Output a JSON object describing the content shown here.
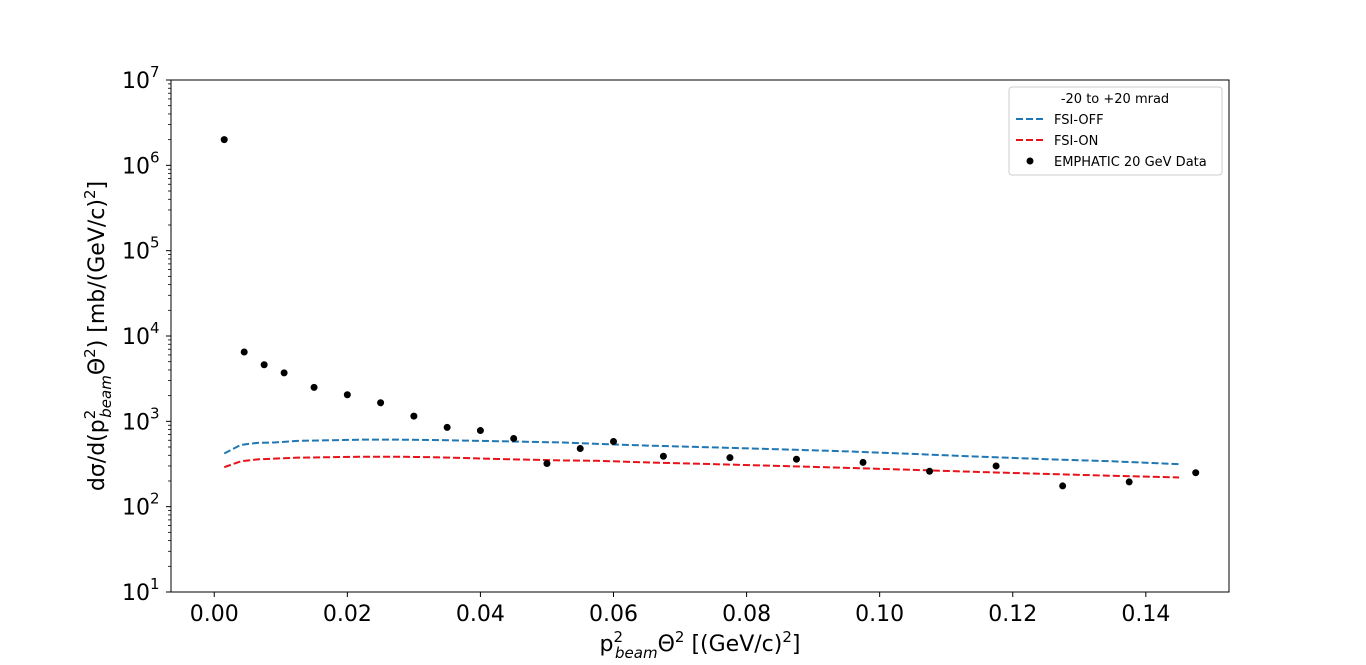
{
  "chart_data": {
    "type": "scatter",
    "title": "",
    "xlabel": {
      "base": "p",
      "sup": "2",
      "sub": "beam",
      "mid": "Θ",
      "sup2": "2",
      "tail": " [(GeV/c)",
      "sup3": "2",
      "end": "]"
    },
    "ylabel": {
      "pre": "dσ/d(p",
      "sup": "2",
      "sub": "beam",
      "mid": "Θ",
      "sup2": "2",
      "tail": ") [mb/(GeV/c)",
      "sup3": "2",
      "end": "]"
    },
    "xlim": [
      -0.0065,
      0.1525
    ],
    "ylim": [
      10,
      10000000
    ],
    "yscale": "log",
    "xticks": [
      "0.00",
      "0.02",
      "0.04",
      "0.06",
      "0.08",
      "0.10",
      "0.12",
      "0.14"
    ],
    "xtick_values": [
      0,
      0.02,
      0.04,
      0.06,
      0.08,
      0.1,
      0.12,
      0.14
    ],
    "yticks": [
      {
        "base": "10",
        "exp": "1"
      },
      {
        "base": "10",
        "exp": "2"
      },
      {
        "base": "10",
        "exp": "3"
      },
      {
        "base": "10",
        "exp": "4"
      },
      {
        "base": "10",
        "exp": "5"
      },
      {
        "base": "10",
        "exp": "6"
      },
      {
        "base": "10",
        "exp": "7"
      }
    ],
    "legend": {
      "title": "-20 to +20 mrad",
      "placement": "top-right"
    },
    "series": [
      {
        "name": "FSI-OFF",
        "style": "dashed-line",
        "color": "#1f77b4",
        "x": [
          0.0015,
          0.004,
          0.0065,
          0.009,
          0.0125,
          0.0175,
          0.0225,
          0.0275,
          0.0325,
          0.0375,
          0.0425,
          0.0475,
          0.0525,
          0.0575,
          0.065,
          0.075,
          0.085,
          0.095,
          0.105,
          0.115,
          0.125,
          0.135,
          0.145
        ],
        "y": [
          420,
          530,
          560,
          565,
          590,
          600,
          610,
          610,
          605,
          595,
          585,
          575,
          565,
          545,
          520,
          495,
          470,
          445,
          415,
          385,
          360,
          340,
          315
        ]
      },
      {
        "name": "FSI-ON",
        "style": "dashed-line",
        "color": "#e8131a",
        "x": [
          0.0015,
          0.004,
          0.0065,
          0.009,
          0.0125,
          0.0175,
          0.0225,
          0.0275,
          0.0325,
          0.0375,
          0.0425,
          0.0475,
          0.0525,
          0.0575,
          0.065,
          0.075,
          0.085,
          0.095,
          0.105,
          0.115,
          0.125,
          0.135,
          0.145
        ],
        "y": [
          290,
          340,
          358,
          365,
          375,
          380,
          385,
          385,
          380,
          372,
          362,
          355,
          348,
          345,
          330,
          315,
          300,
          285,
          270,
          255,
          242,
          230,
          220
        ]
      },
      {
        "name": "EMPHATIC 20 GeV Data",
        "style": "points",
        "color": "#000000",
        "x": [
          0.0015,
          0.0045,
          0.0075,
          0.0105,
          0.015,
          0.02,
          0.025,
          0.03,
          0.035,
          0.04,
          0.045,
          0.05,
          0.055,
          0.06,
          0.0675,
          0.0775,
          0.0875,
          0.0975,
          0.1075,
          0.1175,
          0.1275,
          0.1375,
          0.1475
        ],
        "y": [
          2000000,
          6500,
          4600,
          3700,
          2500,
          2050,
          1650,
          1150,
          850,
          780,
          630,
          320,
          480,
          580,
          390,
          375,
          360,
          330,
          260,
          300,
          175,
          195,
          250
        ]
      }
    ]
  }
}
